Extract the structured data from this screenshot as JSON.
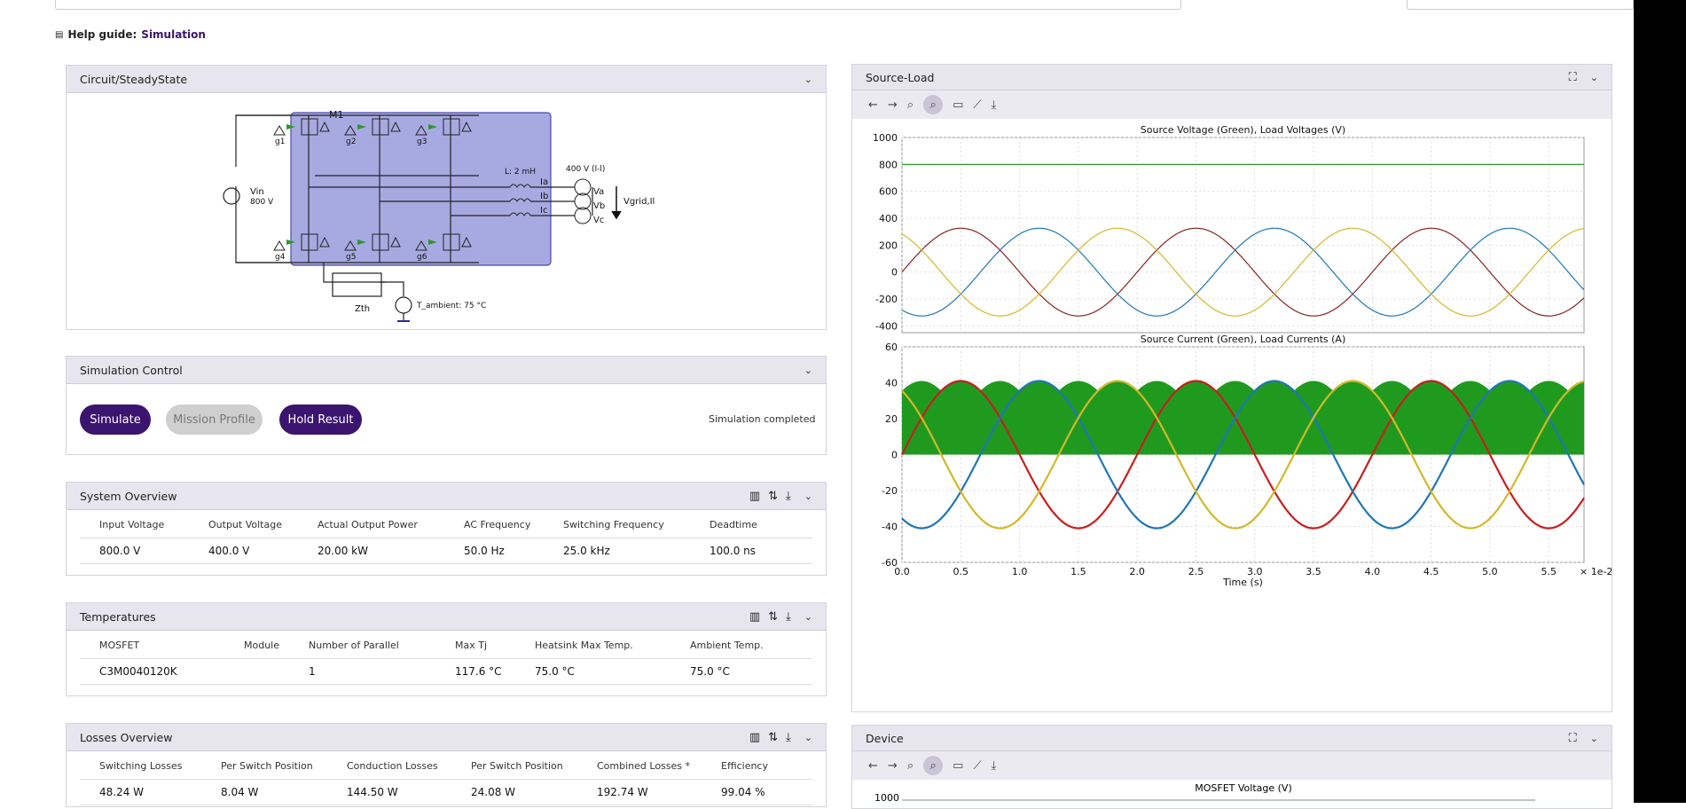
{
  "help": {
    "label": "Help guide:",
    "link": "Simulation"
  },
  "circuit": {
    "title": "Circuit/SteadyState",
    "m1": "M1",
    "gates": [
      "g1",
      "g2",
      "g3",
      "g4",
      "g5",
      "g6"
    ],
    "vin": "Vin",
    "vin_val": "800 V",
    "inductor": "L: 2 mH",
    "grid": "400 V (l-l)",
    "ia": "Ia",
    "ib": "Ib",
    "ic": "Ic",
    "va": "Va",
    "vb": "Vb",
    "vc": "Vc",
    "vgrid": "Vgrid,Il",
    "zth": "Zth",
    "tamb": "T_ambient: 75 °C"
  },
  "simctl": {
    "title": "Simulation Control",
    "simulate": "Simulate",
    "mission": "Mission Profile",
    "hold": "Hold Result",
    "status": "Simulation completed"
  },
  "system": {
    "title": "System Overview",
    "headers": [
      "Input Voltage",
      "Output Voltage",
      "Actual Output Power",
      "AC Frequency",
      "Switching Frequency",
      "Deadtime"
    ],
    "values": [
      "800.0 V",
      "400.0 V",
      "20.00 kW",
      "50.0 Hz",
      "25.0 kHz",
      "100.0 ns"
    ]
  },
  "temps": {
    "title": "Temperatures",
    "headers": [
      "MOSFET",
      "Module",
      "Number of Parallel",
      "Max Tj",
      "Heatsink Max Temp.",
      "Ambient Temp."
    ],
    "values": [
      "C3M0040120K",
      "",
      "1",
      "117.6 °C",
      "75.0 °C",
      "75.0 °C"
    ]
  },
  "losses": {
    "title": "Losses Overview",
    "headers": [
      "Switching Losses",
      "Per Switch Position",
      "Conduction Losses",
      "Per Switch Position",
      "Combined Losses *",
      "Efficiency"
    ],
    "values": [
      "48.24 W",
      "8.04 W",
      "144.50 W",
      "24.08 W",
      "192.74 W",
      "99.04 %"
    ]
  },
  "source_load": {
    "title": "Source-Load"
  },
  "device": {
    "title": "Device"
  },
  "chart_data": [
    {
      "type": "line",
      "title": "Source Voltage (Green), Load Voltages (V)",
      "ylim": [
        -450,
        1000
      ],
      "yticks": [
        1000,
        800,
        600,
        400,
        200,
        0,
        -200,
        -400
      ],
      "xlim": [
        0,
        5.8
      ],
      "series": [
        {
          "color": "#2ca02c",
          "dc": 800
        },
        {
          "color": "#8b2323",
          "amp": 326,
          "phase": 0
        },
        {
          "color": "#1f77b4",
          "amp": 326,
          "phase": -2.0944
        },
        {
          "color": "#d4b829",
          "amp": 326,
          "phase": 2.0944
        }
      ]
    },
    {
      "type": "line",
      "title": "Source Current (Green), Load Currents (A)",
      "ylim": [
        -60,
        60
      ],
      "yticks": [
        60,
        40,
        20,
        0,
        -20,
        -40,
        -60
      ],
      "xlim": [
        0,
        5.8
      ],
      "xticks": [
        "0.0",
        "0.5",
        "1.0",
        "1.5",
        "2.0",
        "2.5",
        "3.0",
        "3.5",
        "4.0",
        "4.5",
        "5.0",
        "5.5"
      ],
      "xlabel": "Time (s)",
      "xscale": "× 1e-2",
      "series": [
        {
          "color": "#1f9a1f",
          "envelope": 41
        },
        {
          "color": "#c81e1e",
          "amp": 41,
          "phase": 0
        },
        {
          "color": "#1f77b4",
          "amp": 41,
          "phase": -2.0944
        },
        {
          "color": "#d4b829",
          "amp": 41,
          "phase": 2.0944
        }
      ]
    },
    {
      "type": "line",
      "title": "MOSFET Voltage (V)",
      "yticks": [
        1000
      ]
    }
  ]
}
